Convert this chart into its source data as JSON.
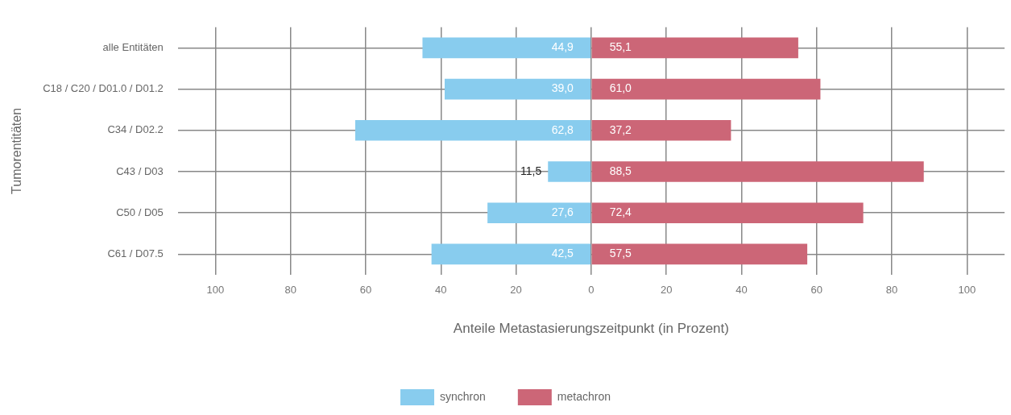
{
  "chart_data": {
    "type": "bar",
    "orientation": "horizontal",
    "categories": [
      "alle Entitäten",
      "C18 / C20 / D01.0 / D01.2",
      "C34 / D02.2",
      "C43 / D03",
      "C50 / D05",
      "C61 / D07.5"
    ],
    "series": [
      {
        "name": "synchron",
        "color": "#88ccee",
        "values": [
          44.9,
          39.0,
          62.8,
          11.5,
          27.6,
          42.5
        ],
        "base": [
          -44.9,
          -39.0,
          -62.8,
          -11.5,
          -27.6,
          -42.5
        ],
        "value_labels": [
          "44,9",
          "39,0",
          "62,8",
          "11,5",
          "27,6",
          "42,5"
        ]
      },
      {
        "name": "metachron",
        "color": "#cc6677",
        "values": [
          55.1,
          61.0,
          37.2,
          88.5,
          72.4,
          57.5
        ],
        "value_labels": [
          "55,1",
          "61,0",
          "37,2",
          "88,5",
          "72,4",
          "57,5"
        ]
      }
    ],
    "xlim": [
      -110,
      110
    ],
    "xticks": [
      {
        "value": -100,
        "label": "100"
      },
      {
        "value": -80,
        "label": "80"
      },
      {
        "value": -60,
        "label": "60"
      },
      {
        "value": -40,
        "label": "40"
      },
      {
        "value": -20,
        "label": "20"
      },
      0,
      20,
      40,
      60,
      80,
      100
    ],
    "xlabel": "Anteile Metastasierungszeitpunkt (in Prozent)",
    "ylabel": "Tumorentitäten",
    "grid": true,
    "legend": "bottom"
  }
}
